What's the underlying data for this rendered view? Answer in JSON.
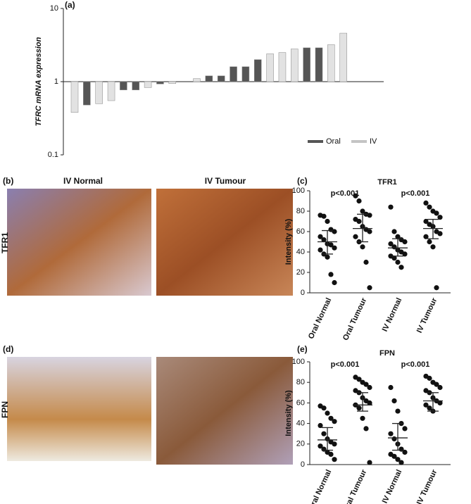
{
  "figure": {
    "panel_labels": [
      "(a)",
      "(b)",
      "(c)",
      "(d)",
      "(e)"
    ],
    "columns": [
      "IV Normal",
      "IV Tumour"
    ],
    "rows": [
      "TFR1",
      "FPN"
    ]
  },
  "chart_data": [
    {
      "type": "bar",
      "y_label": "TFRC mRNA expression",
      "log_y": true,
      "base": 1,
      "ylim": [
        0.1,
        10
      ],
      "yticks": [
        0.1,
        1,
        10
      ],
      "legend": "lower right",
      "categories": [
        null,
        null,
        null,
        null,
        null,
        null,
        null,
        null,
        null,
        null,
        null,
        null,
        null,
        null,
        null,
        null,
        null,
        null,
        null,
        null,
        null,
        null,
        null
      ],
      "series": [
        {
          "name": "Oral",
          "color": "#555555",
          "values": [
            null,
            0.48,
            null,
            null,
            0.77,
            0.77,
            null,
            0.93,
            null,
            null,
            null,
            1.2,
            1.2,
            1.6,
            1.6,
            2.0,
            null,
            null,
            null,
            2.9,
            2.9,
            null,
            null
          ]
        },
        {
          "name": "IV",
          "color": "#e2e2e2",
          "values": [
            0.38,
            null,
            0.5,
            0.55,
            null,
            null,
            0.83,
            null,
            0.94,
            null,
            1.1,
            null,
            null,
            null,
            null,
            null,
            2.4,
            2.5,
            2.8,
            null,
            null,
            3.2,
            4.6
          ]
        }
      ]
    },
    {
      "type": "dot",
      "title": "TFR1",
      "y_label": "Intensity (%)",
      "ylim": [
        0,
        100
      ],
      "yticks": [
        0,
        20,
        40,
        60,
        80,
        100
      ],
      "categories": [
        "Oral Normal",
        "Oral Tumour",
        "IV Normal",
        "IV Tumour"
      ],
      "color": "#111111",
      "values": [
        [
          76,
          75,
          70,
          62,
          60,
          55,
          52,
          48,
          47,
          44,
          42,
          38,
          35,
          18,
          10
        ],
        [
          95,
          90,
          80,
          77,
          76,
          72,
          70,
          65,
          62,
          60,
          55,
          50,
          45,
          30,
          5
        ],
        [
          84,
          60,
          55,
          52,
          50,
          48,
          45,
          42,
          40,
          38,
          36,
          34,
          30,
          25
        ],
        [
          88,
          84,
          80,
          78,
          74,
          70,
          67,
          65,
          60,
          58,
          55,
          50,
          45,
          5
        ]
      ],
      "center": [
        50,
        63,
        44,
        63
      ],
      "lower": [
        38,
        50,
        36,
        53
      ],
      "upper": [
        61,
        77,
        53,
        72
      ],
      "annotations": [
        "p<0.001",
        "p<0.001"
      ]
    },
    {
      "type": "dot",
      "title": "FPN",
      "y_label": "Intensity (%)",
      "ylim": [
        0,
        100
      ],
      "yticks": [
        0,
        20,
        40,
        60,
        80,
        100
      ],
      "categories": [
        "Oral Normal",
        "Oral Tumour",
        "IV Normal",
        "IV Tumour"
      ],
      "color": "#111111",
      "values": [
        [
          57,
          55,
          50,
          45,
          42,
          38,
          30,
          25,
          22,
          20,
          18,
          15,
          12,
          10,
          5
        ],
        [
          85,
          83,
          80,
          78,
          75,
          72,
          70,
          65,
          62,
          60,
          58,
          55,
          45,
          35,
          2
        ],
        [
          75,
          62,
          52,
          40,
          35,
          30,
          25,
          20,
          15,
          12,
          10,
          8,
          5,
          2
        ],
        [
          86,
          84,
          80,
          78,
          75,
          72,
          70,
          65,
          62,
          60,
          58,
          55,
          52
        ]
      ],
      "center": [
        24,
        58,
        26,
        62
      ],
      "lower": [
        14,
        52,
        14,
        52
      ],
      "upper": [
        36,
        70,
        40,
        70
      ],
      "annotations": [
        "p<0.001",
        "p<0.001"
      ]
    }
  ]
}
